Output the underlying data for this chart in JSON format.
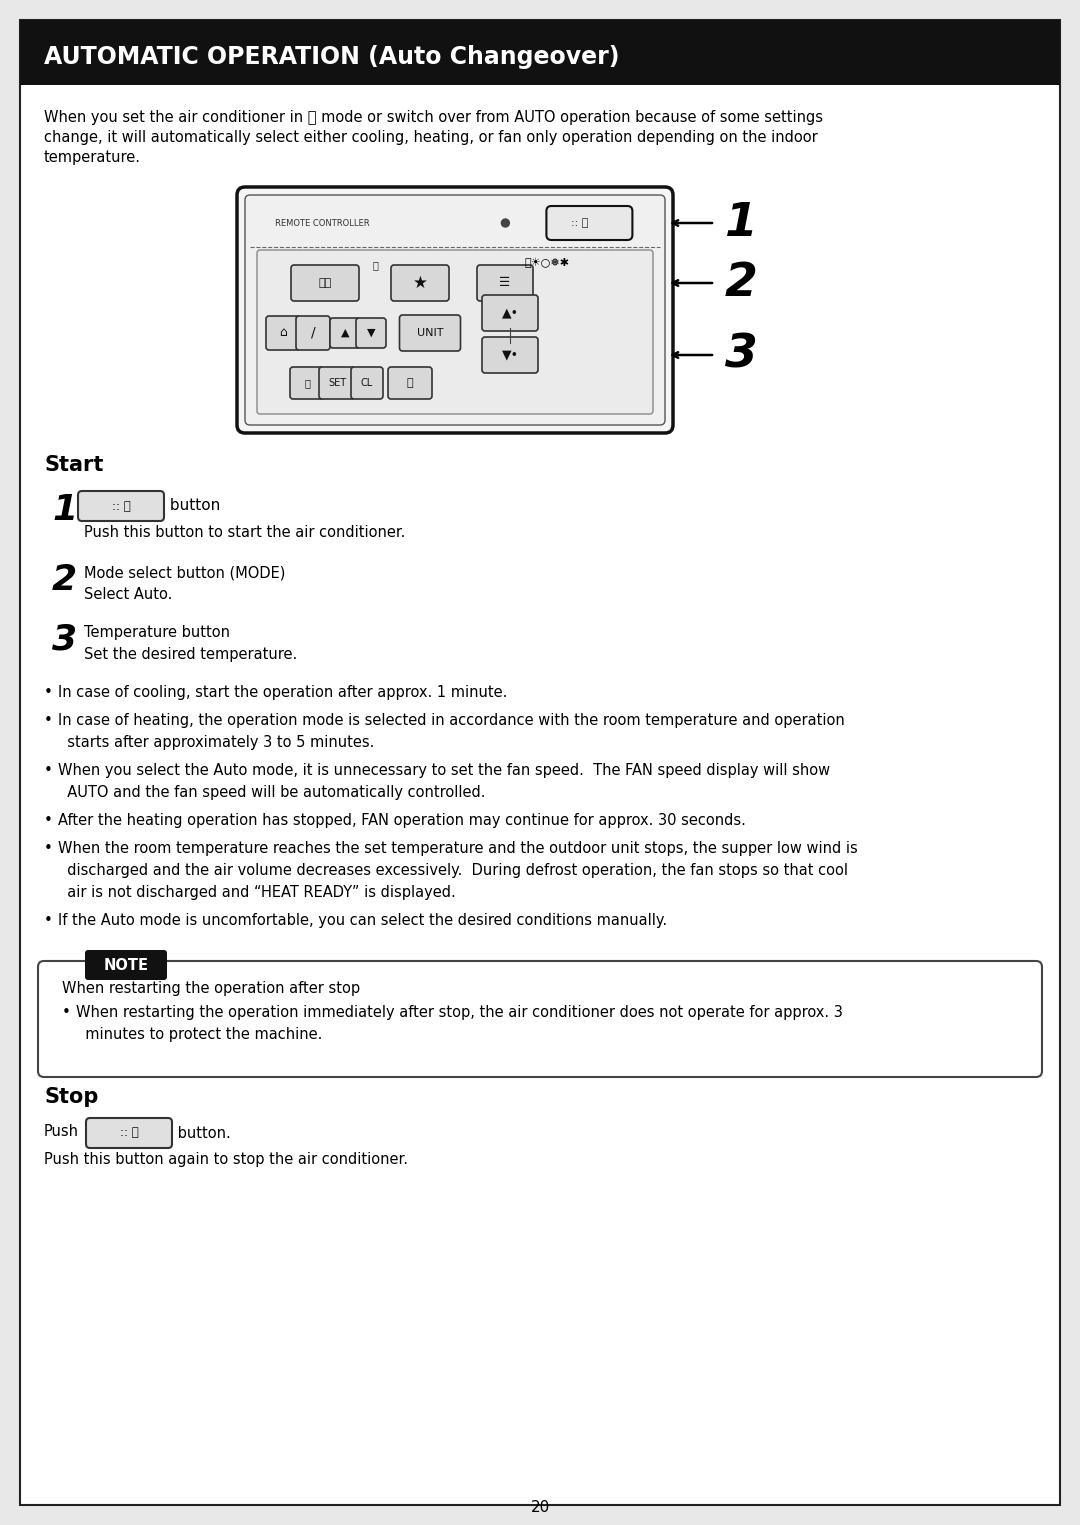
{
  "title": "AUTOMATIC OPERATION (Auto Changeover)",
  "page_number": "20",
  "intro_line1": "When you set the air conditioner in Ⓐ mode or switch over from AUTO operation because of some settings",
  "intro_line2": "change, it will automatically select either cooling, heating, or fan only operation depending on the indoor",
  "intro_line3": "temperature.",
  "start_label": "Start",
  "step1_desc": "Push this button to start the air conditioner.",
  "step2_text": "Mode select button (MODE)",
  "step2_desc": "Select Auto.",
  "step3_text": "Temperature button",
  "step3_desc": "Set the desired temperature.",
  "bullet1": "In case of cooling, start the operation after approx. 1 minute.",
  "bullet2a": "In case of heating, the operation mode is selected in accordance with the room temperature and operation",
  "bullet2b": "  starts after approximately 3 to 5 minutes.",
  "bullet3a": "When you select the Auto mode, it is unnecessary to set the fan speed.  The FAN speed display will show",
  "bullet3b": "  AUTO and the fan speed will be automatically controlled.",
  "bullet4": "After the heating operation has stopped, FAN operation may continue for approx. 30 seconds.",
  "bullet5a": "When the room temperature reaches the set temperature and the outdoor unit stops, the supper low wind is",
  "bullet5b": "  discharged and the air volume decreases excessively.  During defrost operation, the fan stops so that cool",
  "bullet5c": "  air is not discharged and “HEAT READY” is displayed.",
  "bullet6": "If the Auto mode is uncomfortable, you can select the desired conditions manually.",
  "note_header": "When restarting the operation after stop",
  "note_b1": "When restarting the operation immediately after stop, the air conditioner does not operate for approx. 3",
  "note_b2": "  minutes to protect the machine.",
  "stop_label": "Stop",
  "stop_desc": "Push this button again to stop the air conditioner."
}
